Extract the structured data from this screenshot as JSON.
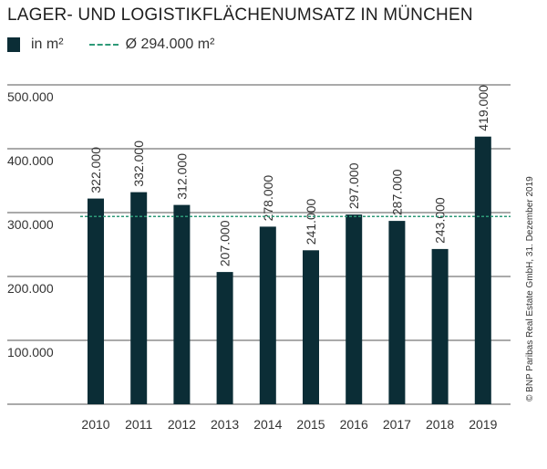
{
  "chart_data": {
    "type": "bar",
    "title": "LAGER- UND LOGISTIKFLÄCHENUMSATZ IN MÜNCHEN",
    "legend": {
      "bar_label": "in m²",
      "average_label": "Ø 294.000 m²"
    },
    "categories": [
      "2010",
      "2011",
      "2012",
      "2013",
      "2014",
      "2015",
      "2016",
      "2017",
      "2018",
      "2019"
    ],
    "values": [
      322000,
      332000,
      312000,
      207000,
      278000,
      241000,
      297000,
      287000,
      243000,
      419000
    ],
    "value_labels": [
      "322.000",
      "332.000",
      "312.000",
      "207.000",
      "278.000",
      "241.000",
      "297.000",
      "287.000",
      "243.000",
      "419.000"
    ],
    "average": 294000,
    "ylim": [
      0,
      500000
    ],
    "yticks": [
      100000,
      200000,
      300000,
      400000,
      500000
    ],
    "ytick_labels": [
      "100.000",
      "200.000",
      "300.000",
      "400.000",
      "500.000"
    ],
    "grid": true,
    "legend_placement": "top-left",
    "colors": {
      "bar": "#0b2d36",
      "average": "#2e9a78",
      "grid": "#555555"
    },
    "source": "© BNP Paribas Real Estate GmbH, 31. Dezember 2019"
  }
}
